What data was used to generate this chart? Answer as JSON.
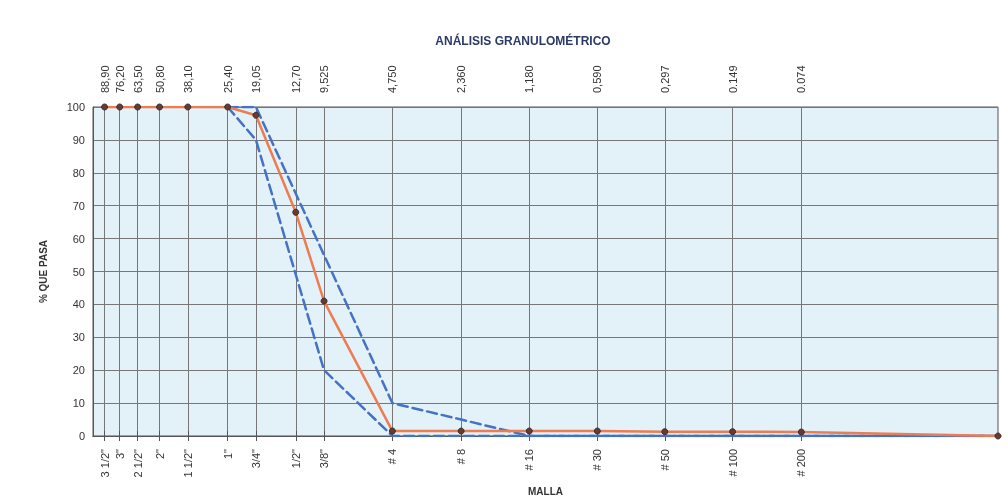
{
  "chart_data": {
    "type": "line",
    "title": "ANÁLISIS GRANULOMÉTRICO",
    "xlabel": "MALLA",
    "ylabel": "% QUE PASA",
    "log": "x",
    "xlim": [
      100,
      0.01
    ],
    "ylim": [
      0,
      100
    ],
    "xticks": [
      {
        "value": 88.9,
        "label": "88,90"
      },
      {
        "value": 76.2,
        "label": "76,20"
      },
      {
        "value": 63.5,
        "label": "63,50"
      },
      {
        "value": 50.8,
        "label": "50,80"
      },
      {
        "value": 38.1,
        "label": "38,10"
      },
      {
        "value": 25.4,
        "label": "25,40"
      },
      {
        "value": 19.05,
        "label": "19,05"
      },
      {
        "value": 12.7,
        "label": "12,70"
      },
      {
        "value": 9.525,
        "label": "9,525"
      },
      {
        "value": 4.75,
        "label": "4,750"
      },
      {
        "value": 2.36,
        "label": "2,360"
      },
      {
        "value": 1.18,
        "label": "1,180"
      },
      {
        "value": 0.59,
        "label": "0,590"
      },
      {
        "value": 0.297,
        "label": "0,297"
      },
      {
        "value": 0.149,
        "label": "0.149"
      },
      {
        "value": 0.074,
        "label": "0.074"
      }
    ],
    "annotations": [
      "3 1/2\"",
      "3\"",
      "2 1/2\"",
      "2\"",
      "1 1/2\"",
      "1\"",
      "3/4\"",
      "1/2\"",
      "3/8\"",
      "# 4",
      "# 8",
      "# 16",
      "# 30",
      "# 50",
      "# 100",
      "# 200"
    ],
    "yticks": [
      0,
      10,
      20,
      30,
      40,
      50,
      60,
      70,
      80,
      90,
      100
    ],
    "grid": true,
    "series": [
      {
        "color": "#4472c4",
        "line_style": "dashed",
        "marker": "none",
        "x": [
          25.4,
          19.05,
          9.525,
          4.75,
          2.36,
          1.18,
          0.01
        ],
        "values": [
          100,
          100,
          55,
          10,
          5,
          0,
          0
        ]
      },
      {
        "color": "#4472c4",
        "line_style": "dashed",
        "marker": "none",
        "x": [
          25.4,
          19.05,
          9.525,
          4.75,
          0.01
        ],
        "values": [
          100,
          90,
          20,
          0,
          0
        ]
      },
      {
        "color": "#ed7d50",
        "line_style": "solid",
        "marker": "circle",
        "x": [
          88.9,
          76.2,
          63.5,
          50.8,
          38.1,
          25.4,
          19.05,
          12.7,
          9.525,
          4.75,
          2.36,
          1.18,
          0.59,
          0.297,
          0.149,
          0.074,
          0.01
        ],
        "values": [
          100,
          100,
          100,
          100,
          100,
          100,
          97.5,
          68,
          41,
          1.5,
          1.5,
          1.5,
          1.5,
          1.3,
          1.3,
          1.2,
          0
        ]
      }
    ]
  }
}
